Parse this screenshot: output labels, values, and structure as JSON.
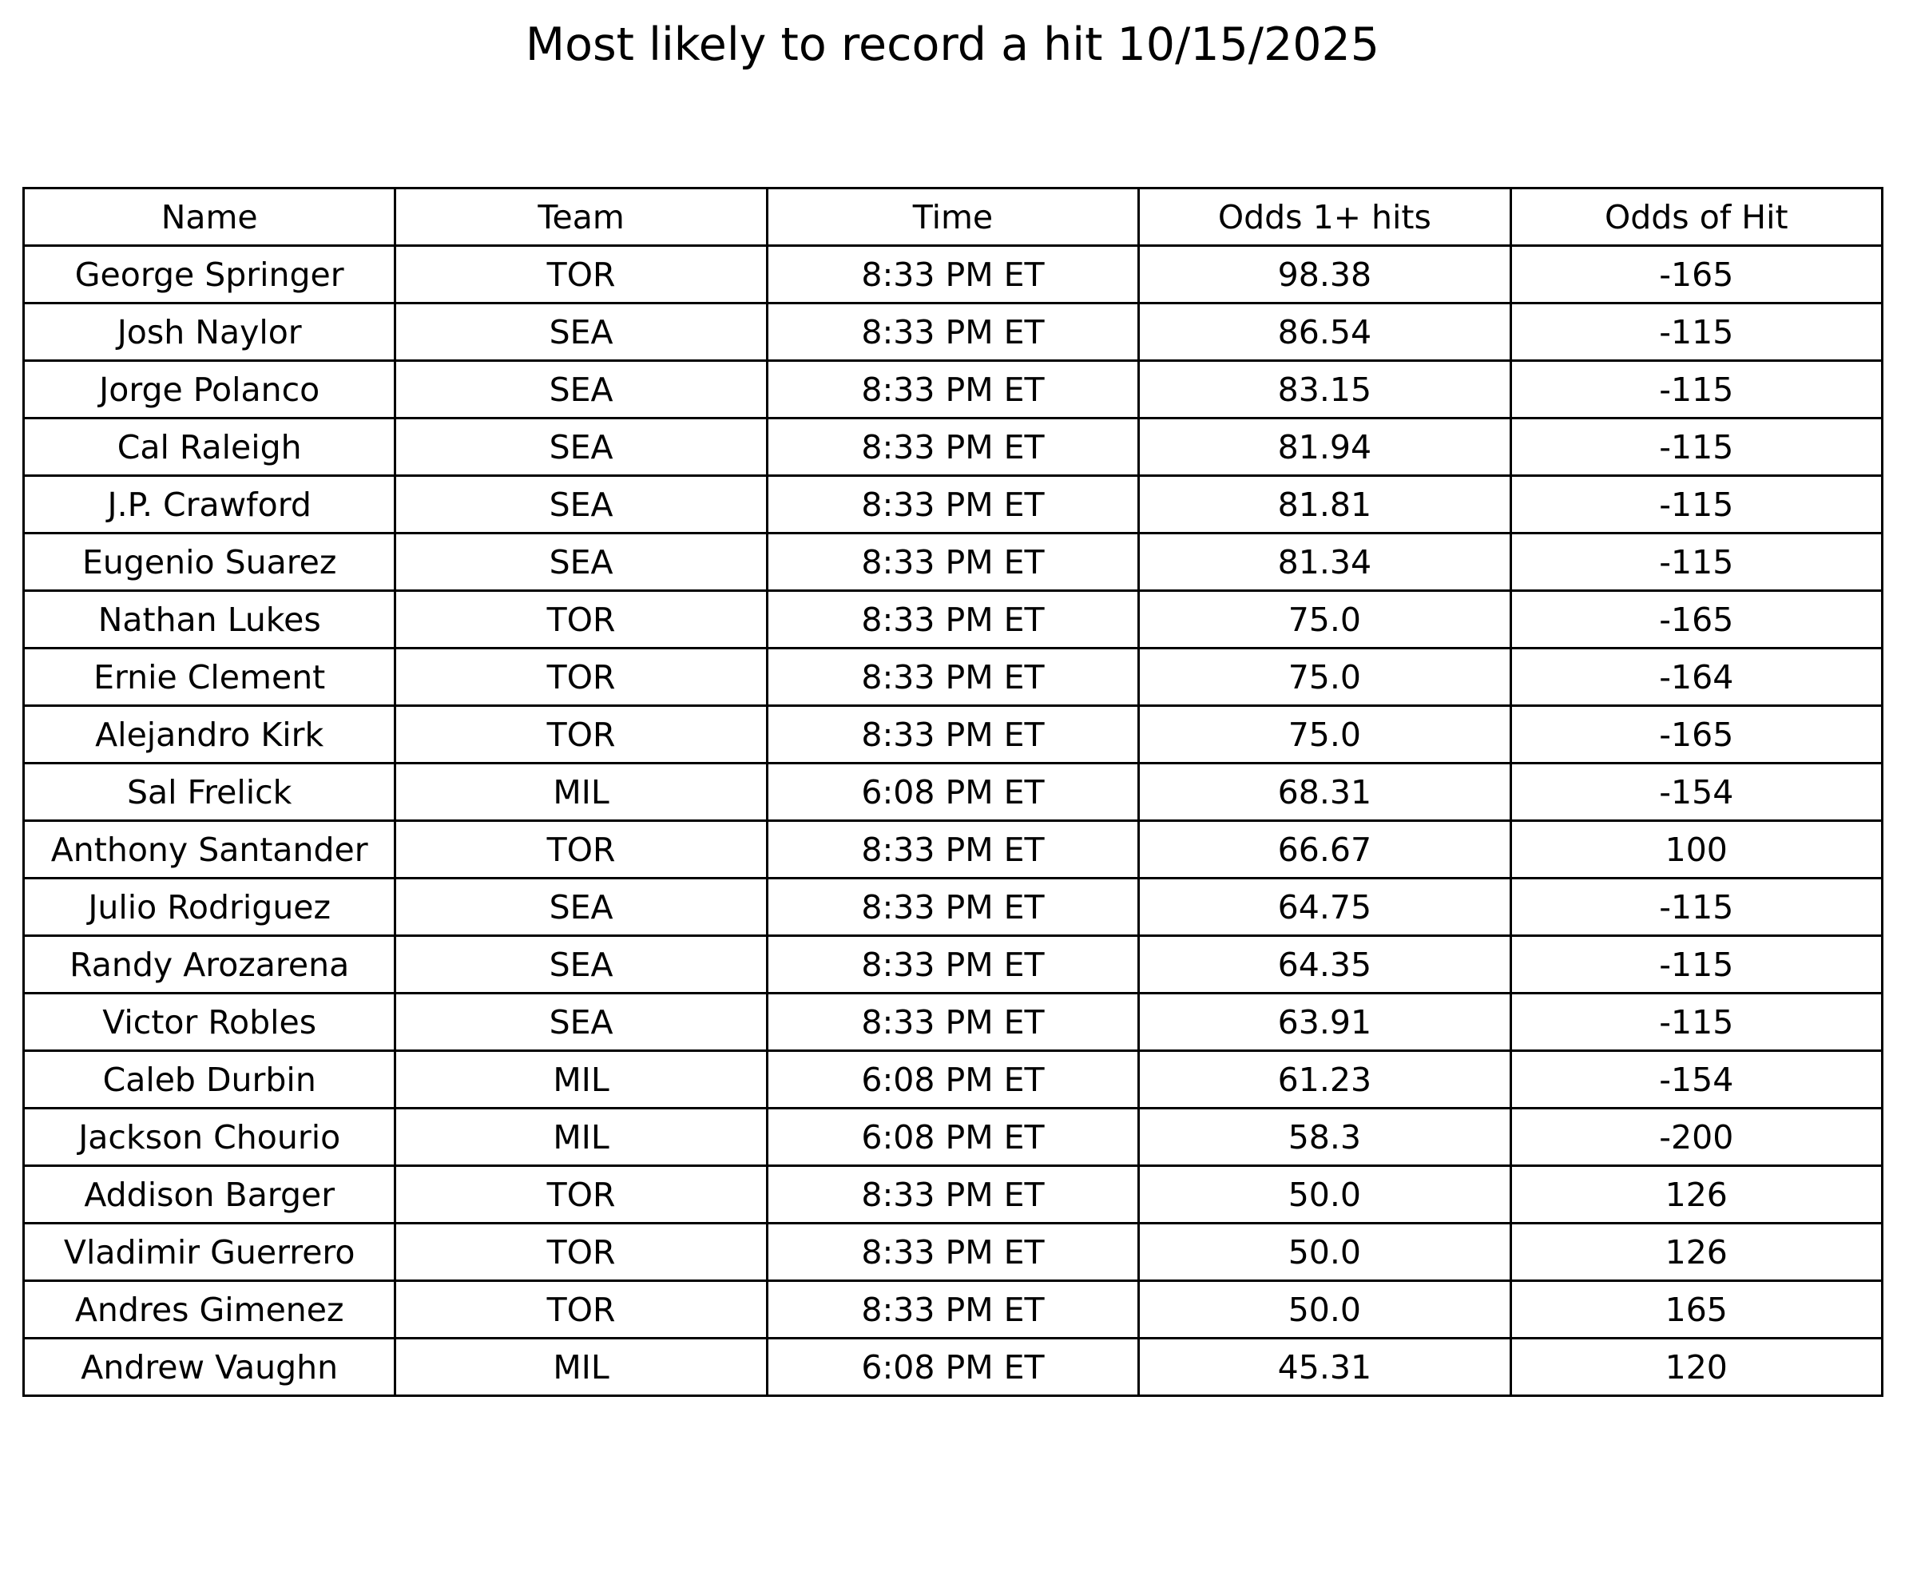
{
  "chart_data": {
    "type": "table",
    "title": "Most likely to record a hit 10/15/2025",
    "columns": [
      "Name",
      "Team",
      "Time",
      "Odds 1+ hits",
      "Odds of Hit"
    ],
    "rows": [
      [
        "George Springer",
        "TOR",
        "8:33 PM ET",
        "98.38",
        "-165"
      ],
      [
        "Josh Naylor",
        "SEA",
        "8:33 PM ET",
        "86.54",
        "-115"
      ],
      [
        "Jorge Polanco",
        "SEA",
        "8:33 PM ET",
        "83.15",
        "-115"
      ],
      [
        "Cal Raleigh",
        "SEA",
        "8:33 PM ET",
        "81.94",
        "-115"
      ],
      [
        "J.P. Crawford",
        "SEA",
        "8:33 PM ET",
        "81.81",
        "-115"
      ],
      [
        "Eugenio Suarez",
        "SEA",
        "8:33 PM ET",
        "81.34",
        "-115"
      ],
      [
        "Nathan Lukes",
        "TOR",
        "8:33 PM ET",
        "75.0",
        "-165"
      ],
      [
        "Ernie Clement",
        "TOR",
        "8:33 PM ET",
        "75.0",
        "-164"
      ],
      [
        "Alejandro Kirk",
        "TOR",
        "8:33 PM ET",
        "75.0",
        "-165"
      ],
      [
        "Sal Frelick",
        "MIL",
        "6:08 PM ET",
        "68.31",
        "-154"
      ],
      [
        "Anthony Santander",
        "TOR",
        "8:33 PM ET",
        "66.67",
        "100"
      ],
      [
        "Julio Rodriguez",
        "SEA",
        "8:33 PM ET",
        "64.75",
        "-115"
      ],
      [
        "Randy Arozarena",
        "SEA",
        "8:33 PM ET",
        "64.35",
        "-115"
      ],
      [
        "Victor Robles",
        "SEA",
        "8:33 PM ET",
        "63.91",
        "-115"
      ],
      [
        "Caleb Durbin",
        "MIL",
        "6:08 PM ET",
        "61.23",
        "-154"
      ],
      [
        "Jackson Chourio",
        "MIL",
        "6:08 PM ET",
        "58.3",
        "-200"
      ],
      [
        "Addison Barger",
        "TOR",
        "8:33 PM ET",
        "50.0",
        "126"
      ],
      [
        "Vladimir Guerrero",
        "TOR",
        "8:33 PM ET",
        "50.0",
        "126"
      ],
      [
        "Andres Gimenez",
        "TOR",
        "8:33 PM ET",
        "50.0",
        "165"
      ],
      [
        "Andrew Vaughn",
        "MIL",
        "6:08 PM ET",
        "45.31",
        "120"
      ]
    ]
  }
}
